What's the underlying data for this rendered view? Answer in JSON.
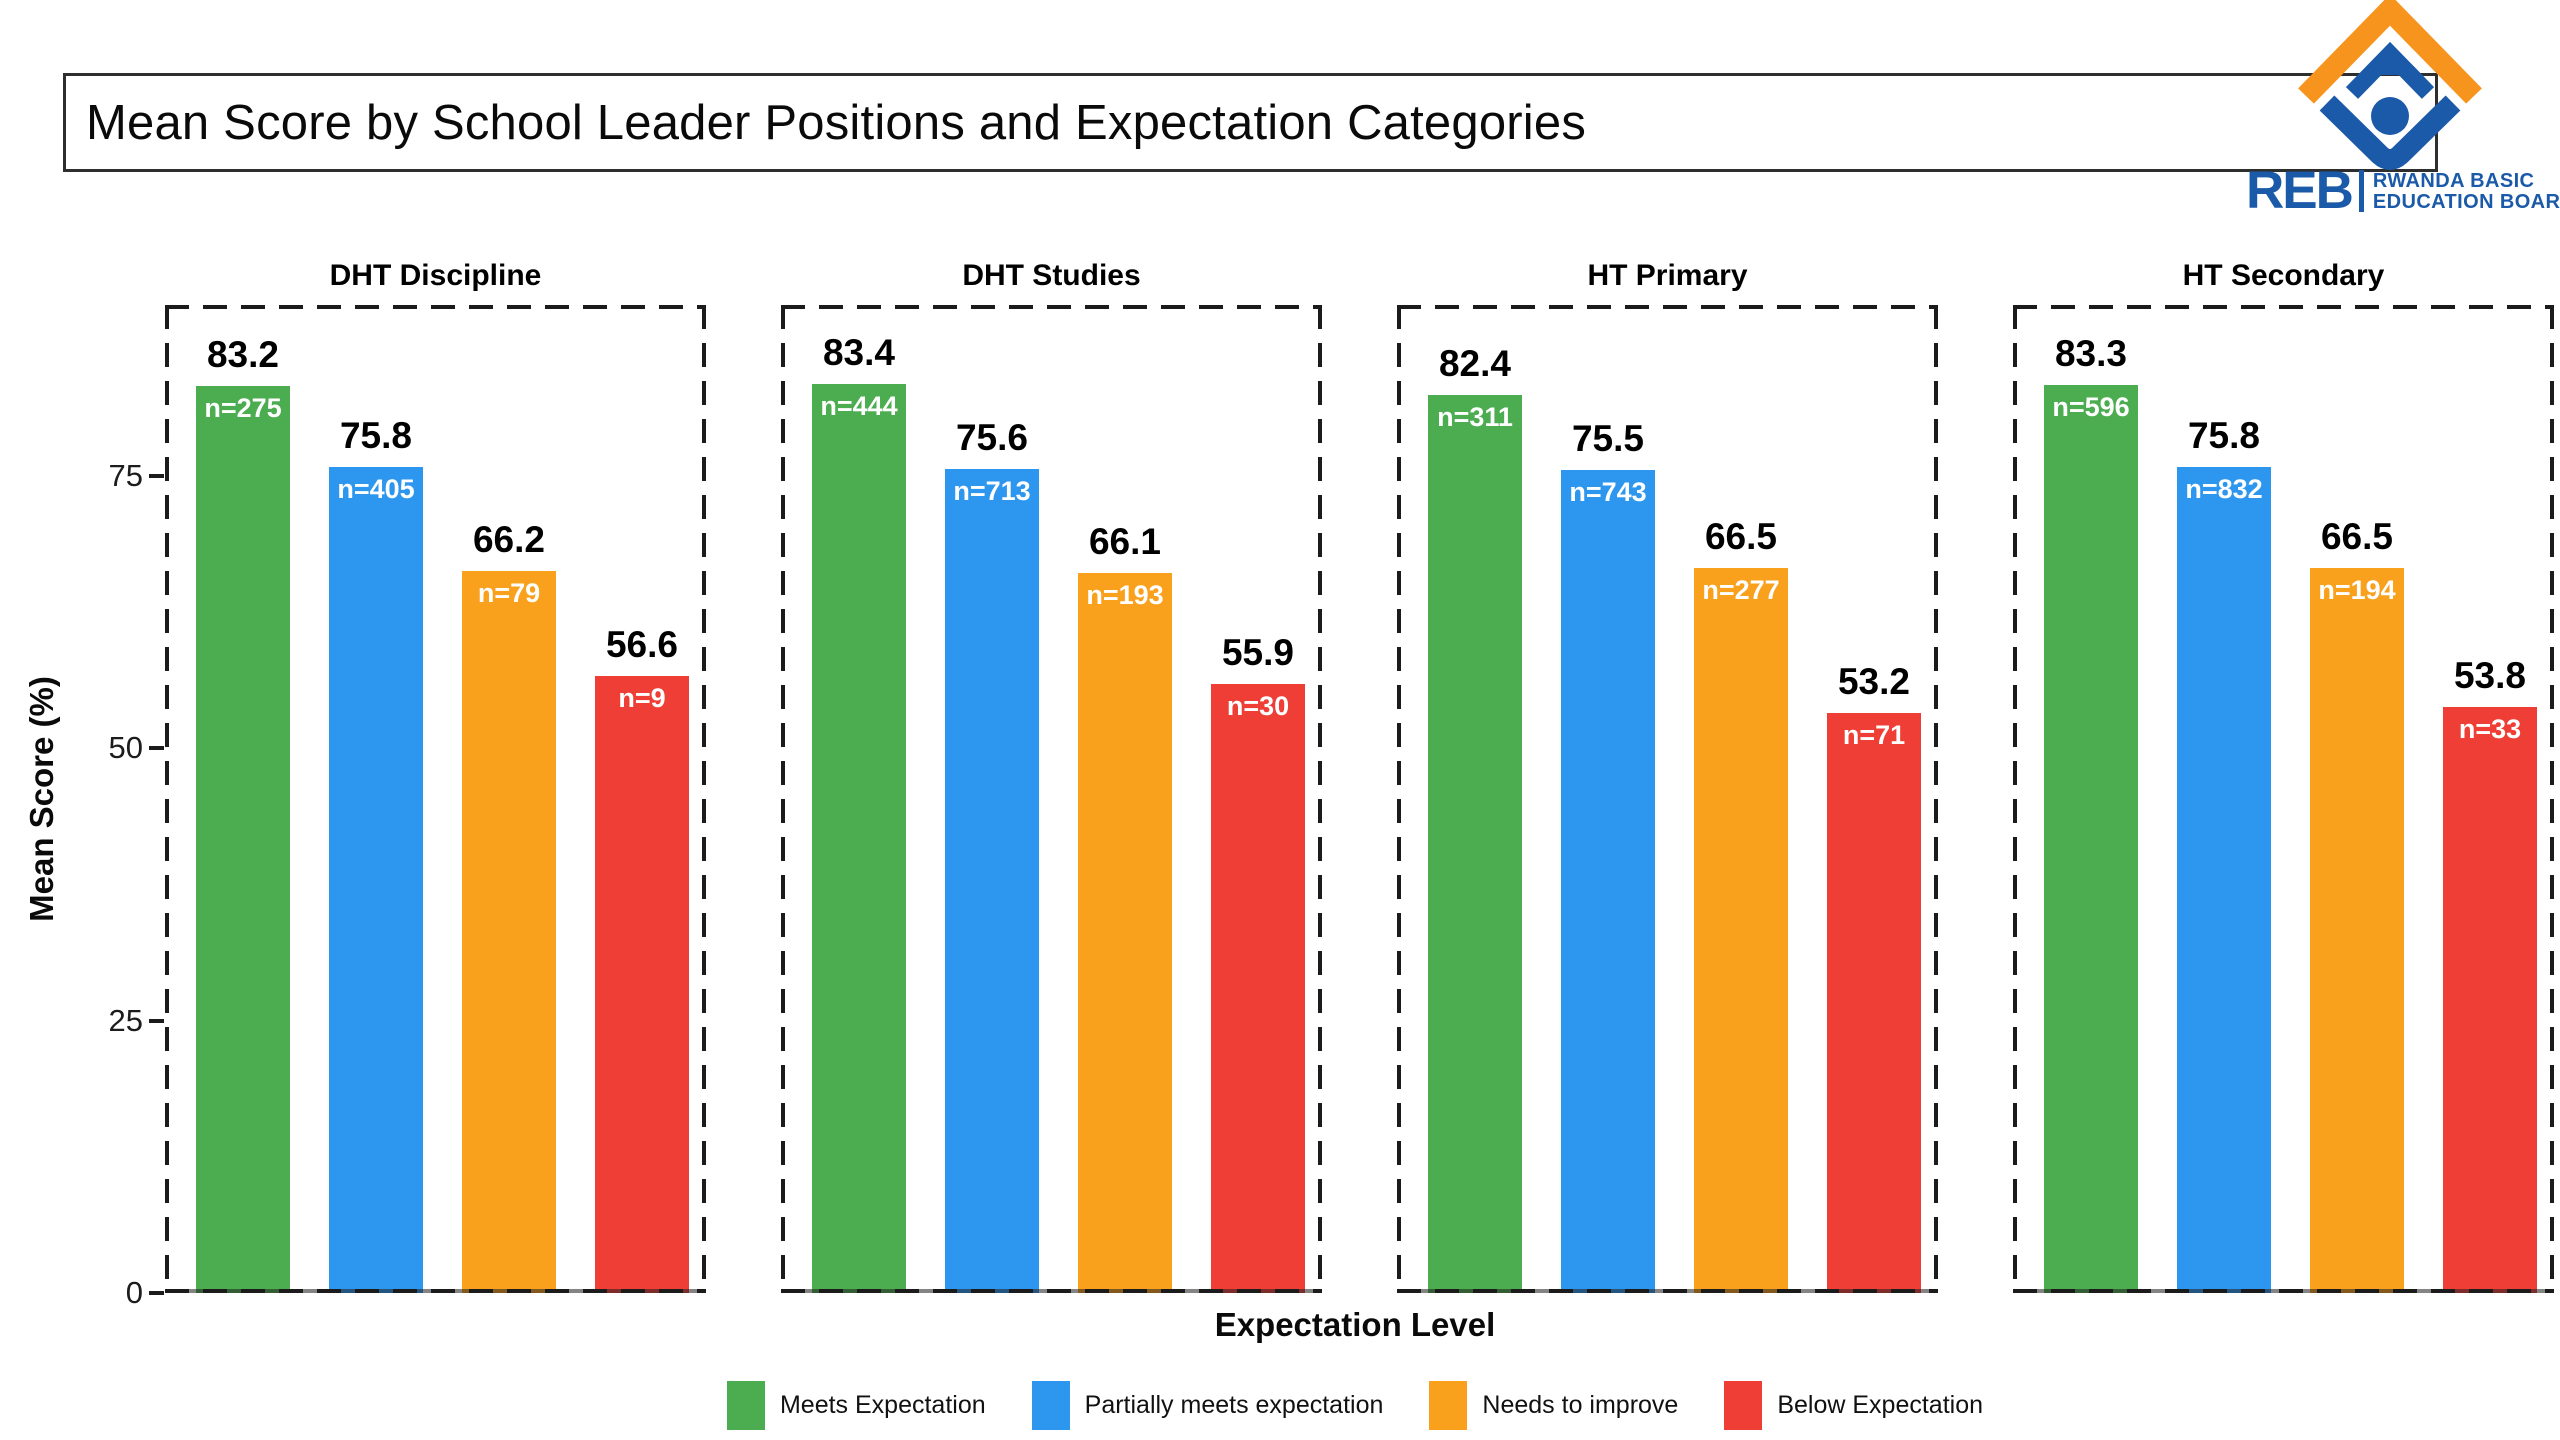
{
  "header": {
    "title": "Mean Score by School Leader Positions and Expectation Categories"
  },
  "logo": {
    "acronym": "REB",
    "org_line1": "RWANDA BASIC",
    "org_line2": "EDUCATION BOARD",
    "blue": "#1B5AA8",
    "orange": "#F7941E"
  },
  "chart_data": {
    "type": "bar",
    "title": "Mean Score by School Leader Positions and Expectation Categories",
    "xlabel": "Expectation Level",
    "ylabel": "Mean Score (%)",
    "yticks": [
      0,
      25,
      50,
      75
    ],
    "ylim": [
      0,
      90.6
    ],
    "grid": false,
    "legend_position": "bottom",
    "facet_style": "dashed-border-panels",
    "categories": [
      "Meets Expectation",
      "Partially meets expectation",
      "Needs to improve",
      "Below Expectation"
    ],
    "colors": [
      "#4CAC50",
      "#2D97F0",
      "#F9A01C",
      "#EE3E35"
    ],
    "panels": [
      {
        "title": "DHT Discipline",
        "values": [
          83.2,
          75.8,
          66.2,
          56.6
        ],
        "n_labels": [
          "n=275",
          "n=405",
          "n=79",
          "n=9"
        ]
      },
      {
        "title": "DHT Studies",
        "values": [
          83.4,
          75.6,
          66.1,
          55.9
        ],
        "n_labels": [
          "n=444",
          "n=713",
          "n=193",
          "n=30"
        ]
      },
      {
        "title": "HT Primary",
        "values": [
          82.4,
          75.5,
          66.5,
          53.2
        ],
        "n_labels": [
          "n=311",
          "n=743",
          "n=277",
          "n=71"
        ]
      },
      {
        "title": "HT Secondary",
        "values": [
          83.3,
          75.8,
          66.5,
          53.8
        ],
        "n_labels": [
          "n=596",
          "n=832",
          "n=194",
          "n=33"
        ]
      }
    ],
    "legend": [
      {
        "label": "Meets Expectation",
        "color": "#4CAC50"
      },
      {
        "label": "Partially meets expectation",
        "color": "#2D97F0"
      },
      {
        "label": "Needs to improve",
        "color": "#F9A01C"
      },
      {
        "label": "Below Expectation",
        "color": "#EE3E35"
      }
    ]
  }
}
